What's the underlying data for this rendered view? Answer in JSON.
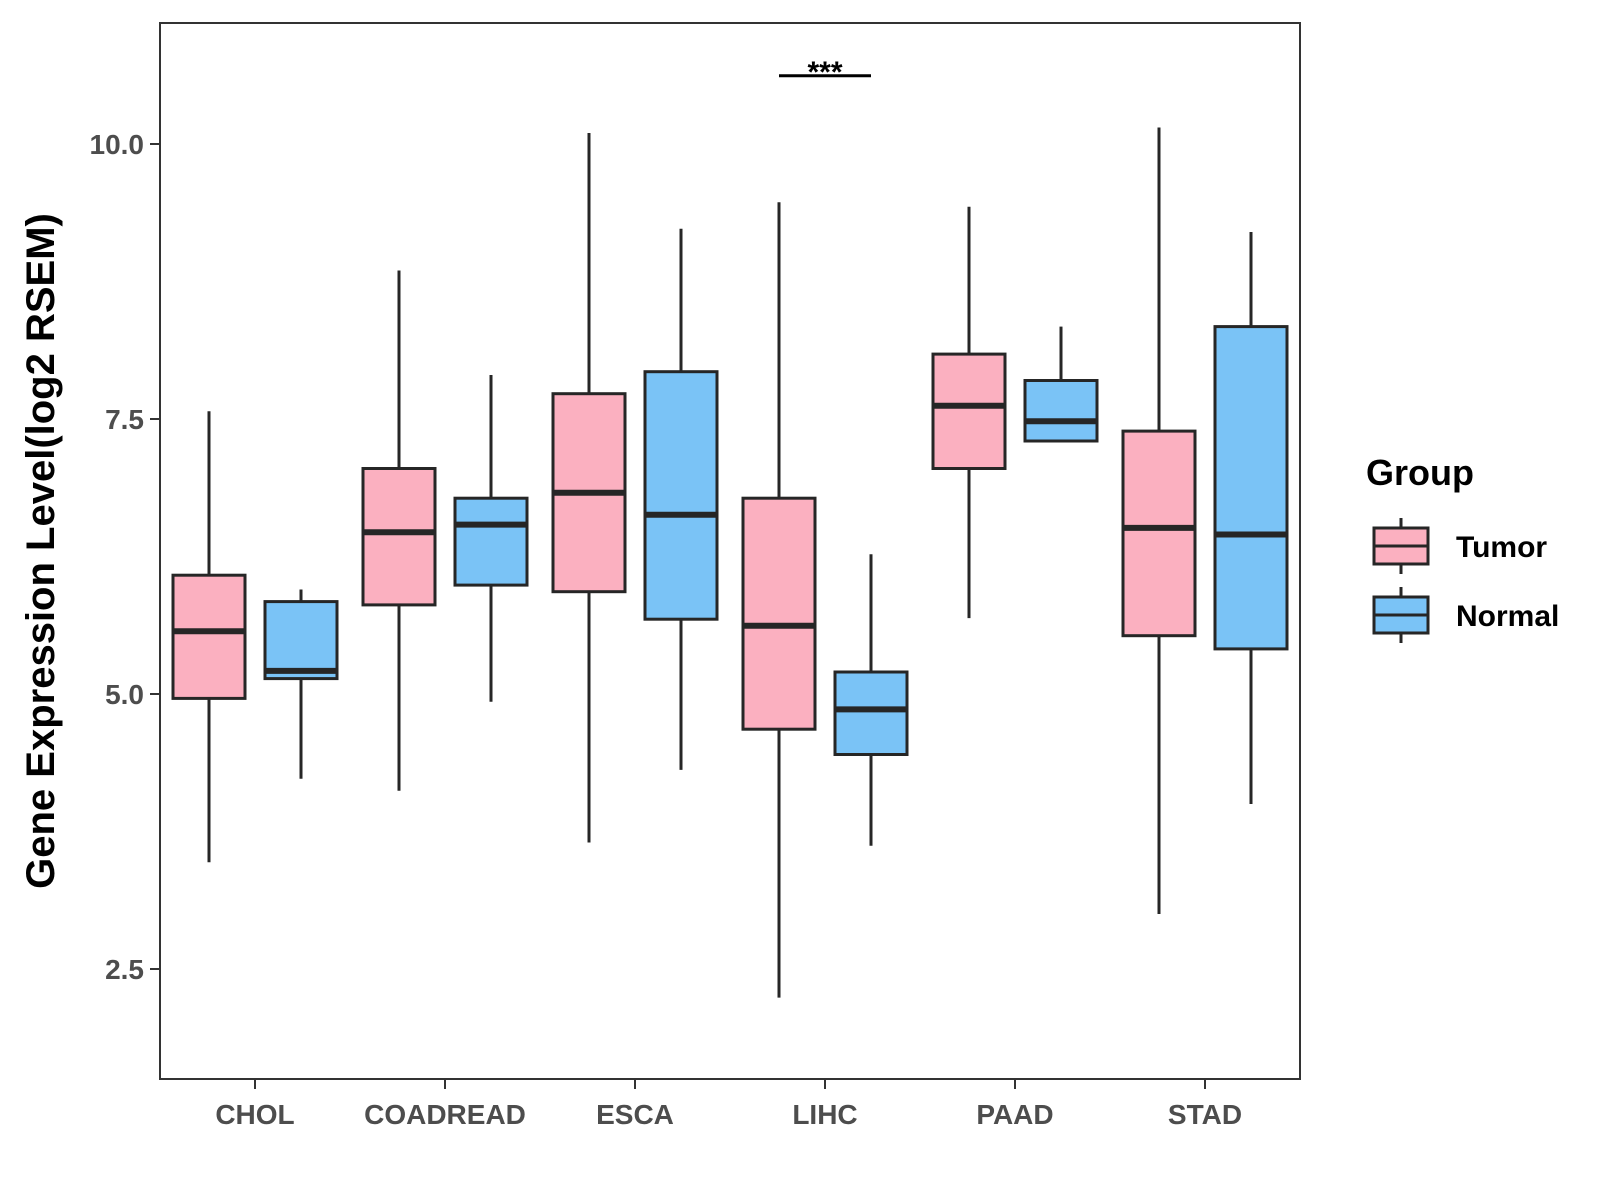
{
  "chart_data": {
    "type": "boxplot",
    "title": "",
    "xlabel": "",
    "ylabel": "Gene Expression Level(log2 RSEM)",
    "ylim": [
      1.5,
      11.1
    ],
    "yticks": [
      2.5,
      5.0,
      7.5,
      10.0
    ],
    "ytick_labels": [
      "2.5",
      "5.0",
      "7.5",
      "10.0"
    ],
    "categories": [
      "CHOL",
      "COADREAD",
      "ESCA",
      "LIHC",
      "PAAD",
      "STAD"
    ],
    "legend": {
      "title": "Group",
      "position": "right"
    },
    "series": [
      {
        "name": "Tumor",
        "color": "#fbb0c0",
        "boxes": [
          {
            "min": 3.47,
            "q1": 4.96,
            "median": 5.57,
            "q3": 6.08,
            "max": 7.57
          },
          {
            "min": 4.12,
            "q1": 5.81,
            "median": 6.47,
            "q3": 7.05,
            "max": 8.85
          },
          {
            "min": 3.65,
            "q1": 5.93,
            "median": 6.83,
            "q3": 7.73,
            "max": 10.1
          },
          {
            "min": 2.24,
            "q1": 4.68,
            "median": 5.62,
            "q3": 6.78,
            "max": 9.47
          },
          {
            "min": 5.69,
            "q1": 7.05,
            "median": 7.62,
            "q3": 8.09,
            "max": 9.43
          },
          {
            "min": 3.0,
            "q1": 5.53,
            "median": 6.51,
            "q3": 7.39,
            "max": 10.15
          }
        ]
      },
      {
        "name": "Normal",
        "color": "#7ac3f6",
        "boxes": [
          {
            "min": 4.23,
            "q1": 5.14,
            "median": 5.21,
            "q3": 5.84,
            "max": 5.95
          },
          {
            "min": 4.93,
            "q1": 5.99,
            "median": 6.54,
            "q3": 6.78,
            "max": 7.9
          },
          {
            "min": 4.31,
            "q1": 5.68,
            "median": 6.63,
            "q3": 7.93,
            "max": 9.23
          },
          {
            "min": 3.62,
            "q1": 4.45,
            "median": 4.86,
            "q3": 5.2,
            "max": 6.27
          },
          {
            "min": 7.3,
            "q1": 7.3,
            "median": 7.48,
            "q3": 7.85,
            "max": 8.34
          },
          {
            "min": 4.0,
            "q1": 5.41,
            "median": 6.45,
            "q3": 8.34,
            "max": 9.2
          }
        ]
      }
    ],
    "annotations": [
      {
        "category": "LIHC",
        "text": "***",
        "y": 10.62
      }
    ]
  }
}
